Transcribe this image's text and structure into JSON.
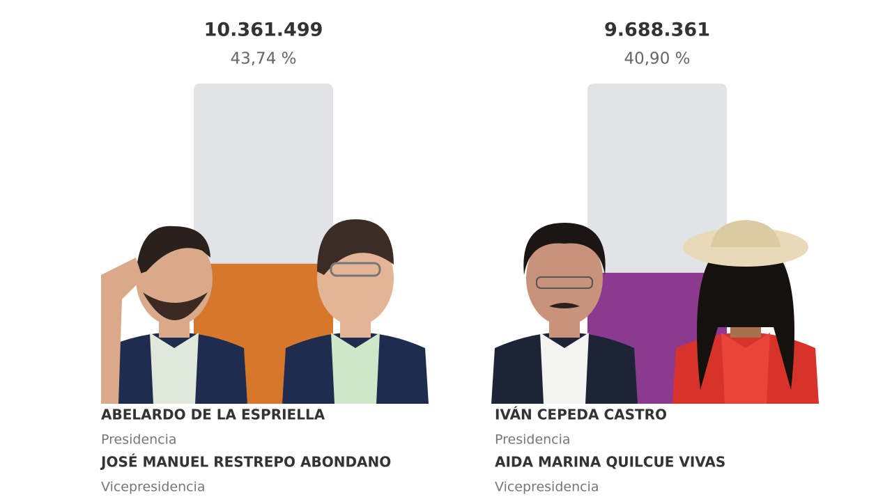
{
  "candidates": [
    {
      "votes": "10.361.499",
      "percent": 43.74,
      "percent_label": "43,74 %",
      "color": "#d5782c",
      "president": "ABELARDO DE LA ESPRIELLA",
      "president_role": "Presidencia",
      "vice": "JOSÉ MANUEL RESTREPO ABONDANO",
      "vice_role": "Vicepresidencia"
    },
    {
      "votes": "9.688.361",
      "percent": 40.9,
      "percent_label": "40,90 %",
      "color": "#8b3a8f",
      "president": "IVÁN CEPEDA CASTRO",
      "president_role": "Presidencia",
      "vice": "AIDA MARINA QUILCUE VIVAS",
      "vice_role": "Vicepresidencia"
    }
  ]
}
